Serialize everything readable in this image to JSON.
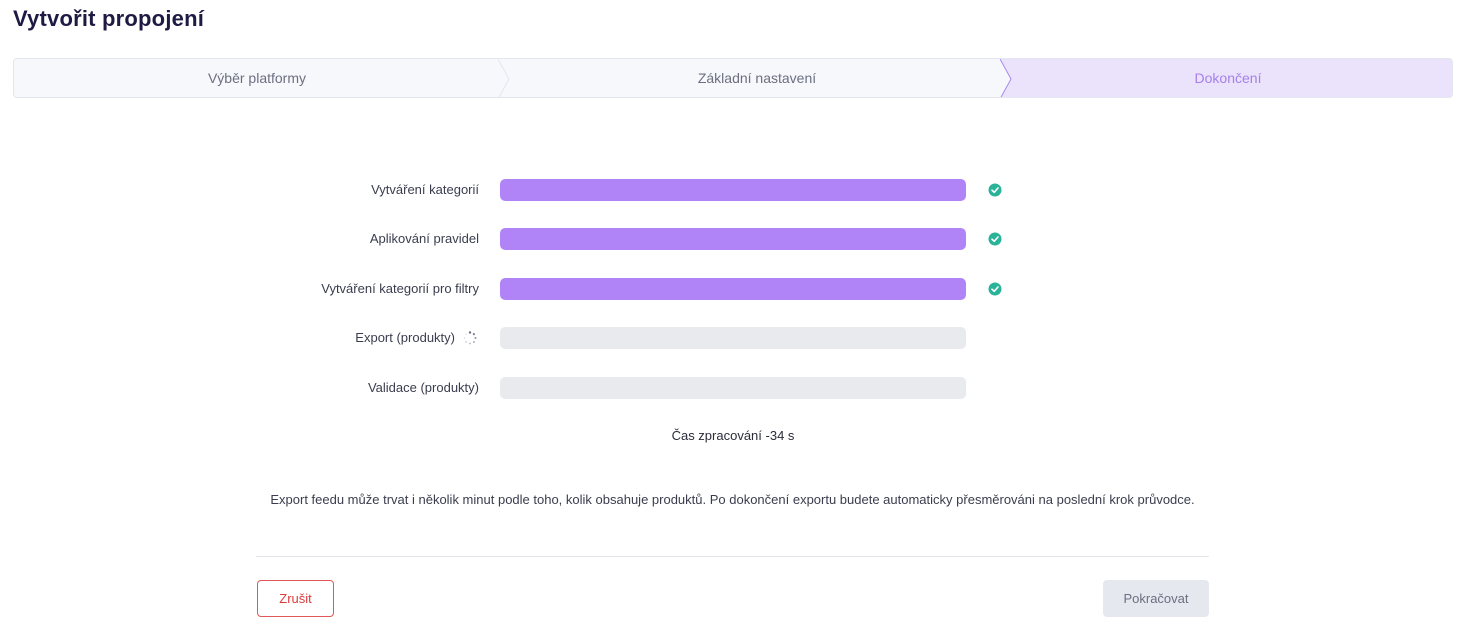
{
  "page": {
    "title": "Vytvořit propojení"
  },
  "stepper": {
    "steps": [
      {
        "label": "Výběr platformy",
        "state": "done"
      },
      {
        "label": "Základní nastavení",
        "state": "done"
      },
      {
        "label": "Dokončení",
        "state": "active"
      }
    ]
  },
  "colors": {
    "accent": "#b084f7",
    "active_step_bg": "#ebe3fb",
    "active_step_text": "#a580ea",
    "success": "#2bb39a",
    "danger": "#e03b3b"
  },
  "tasks": [
    {
      "label": "Vytváření kategorií",
      "progress": 1.0,
      "status": "done",
      "status_icon": "check-circle-icon"
    },
    {
      "label": "Aplikování pravidel",
      "progress": 1.0,
      "status": "done",
      "status_icon": "check-circle-icon"
    },
    {
      "label": "Vytváření kategorií pro filtry",
      "progress": 1.0,
      "status": "done",
      "status_icon": "check-circle-icon"
    },
    {
      "label": "Export (produkty)",
      "progress": 0.0,
      "status": "running",
      "status_icon": "spinner-icon"
    },
    {
      "label": "Validace (produkty)",
      "progress": 0.0,
      "status": "pending"
    }
  ],
  "elapsed_text": "Čas zpracování -34 s",
  "info_text": "Export feedu může trvat i několik minut podle toho, kolik obsahuje produktů. Po dokončení exportu budete automaticky přesměrováni na poslední krok průvodce.",
  "actions": {
    "cancel_label": "Zrušit",
    "continue_label": "Pokračovat"
  }
}
